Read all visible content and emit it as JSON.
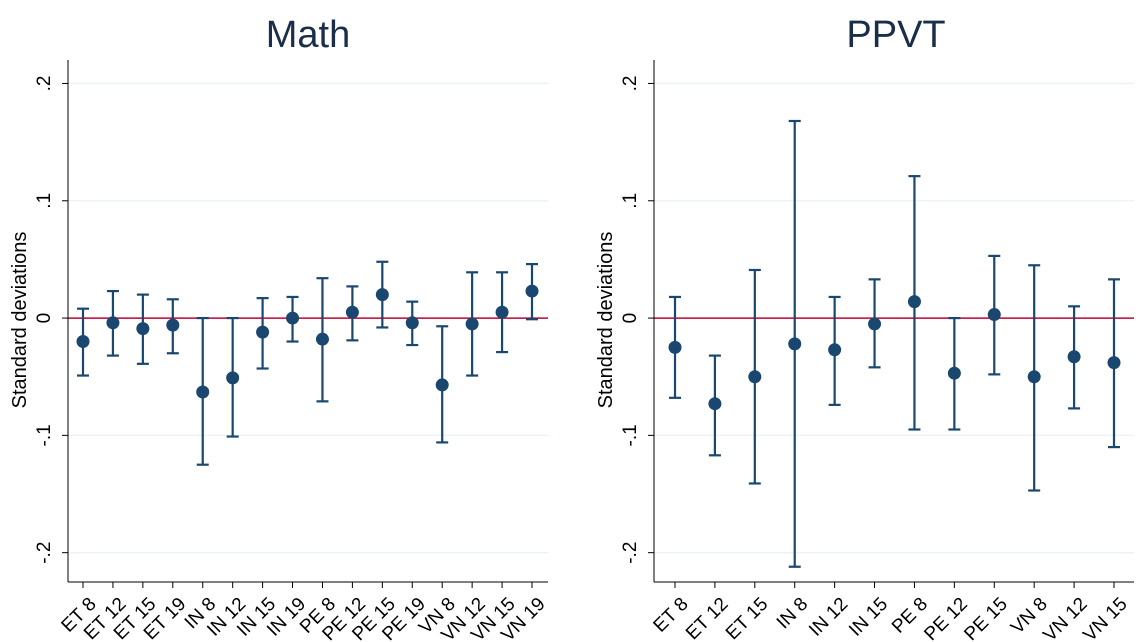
{
  "colors": {
    "marker": "#1a476f",
    "zero_line": "#c10534",
    "grid": "#eaf2f3",
    "axis": "#000000"
  },
  "chart_data": [
    {
      "type": "scatter",
      "title": "Math",
      "ylabel": "Standard deviations",
      "xlabel": "",
      "ylim": [
        -0.225,
        0.22
      ],
      "yticks": [
        -0.2,
        -0.1,
        0,
        0.1,
        0.2
      ],
      "ytick_labels": [
        "-.2",
        "-.1",
        "0",
        ".1",
        ".2"
      ],
      "grid": true,
      "reference_line": 0,
      "categories": [
        "ET 8",
        "ET 12",
        "ET 15",
        "ET 19",
        "IN 8",
        "IN 12",
        "IN 15",
        "IN 19",
        "PE 8",
        "PE 12",
        "PE 15",
        "PE 19",
        "VN 8",
        "VN 12",
        "VN 15",
        "VN 19"
      ],
      "estimates": [
        -0.02,
        -0.004,
        -0.009,
        -0.006,
        -0.063,
        -0.051,
        -0.012,
        0.0,
        -0.018,
        0.005,
        0.02,
        -0.004,
        -0.057,
        -0.005,
        0.005,
        0.023
      ],
      "ci_lower": [
        -0.049,
        -0.032,
        -0.039,
        -0.03,
        -0.125,
        -0.101,
        -0.043,
        -0.02,
        -0.071,
        -0.019,
        -0.008,
        -0.023,
        -0.106,
        -0.049,
        -0.029,
        -0.001
      ],
      "ci_upper": [
        0.008,
        0.023,
        0.02,
        0.016,
        0.0,
        0.0,
        0.017,
        0.018,
        0.034,
        0.027,
        0.048,
        0.014,
        -0.007,
        0.039,
        0.039,
        0.046
      ]
    },
    {
      "type": "scatter",
      "title": "PPVT",
      "ylabel": "Standard deviations",
      "xlabel": "",
      "ylim": [
        -0.225,
        0.22
      ],
      "yticks": [
        -0.2,
        -0.1,
        0,
        0.1,
        0.2
      ],
      "ytick_labels": [
        "-.2",
        "-.1",
        "0",
        ".1",
        ".2"
      ],
      "grid": true,
      "reference_line": 0,
      "categories": [
        "ET 8",
        "ET 12",
        "ET 15",
        "IN 8",
        "IN 12",
        "IN 15",
        "PE 8",
        "PE 12",
        "PE 15",
        "VN 8",
        "VN 12",
        "VN 15"
      ],
      "estimates": [
        -0.025,
        -0.073,
        -0.05,
        -0.022,
        -0.027,
        -0.005,
        0.014,
        -0.047,
        0.003,
        -0.05,
        -0.033,
        -0.038
      ],
      "ci_lower": [
        -0.068,
        -0.117,
        -0.141,
        -0.212,
        -0.074,
        -0.042,
        -0.095,
        -0.095,
        -0.048,
        -0.147,
        -0.077,
        -0.11
      ],
      "ci_upper": [
        0.018,
        -0.032,
        0.041,
        0.168,
        0.018,
        0.033,
        0.121,
        0.0,
        0.053,
        0.045,
        0.01,
        0.033
      ]
    }
  ]
}
